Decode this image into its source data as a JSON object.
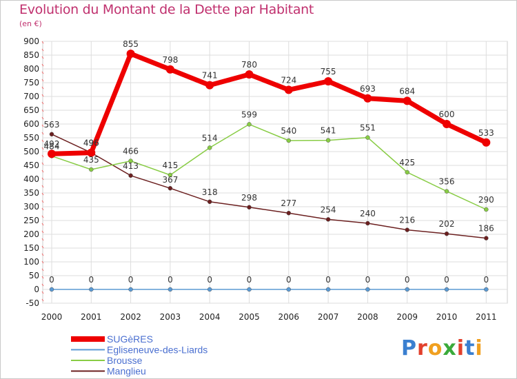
{
  "header": {
    "title": "Evolution du Montant de la Dette par Habitant",
    "subtitle": "(en €)"
  },
  "logo": {
    "text": "Proxiti",
    "letters": [
      {
        "ch": "P",
        "color": "#3a7fd0"
      },
      {
        "ch": "r",
        "color": "#e2402c"
      },
      {
        "ch": "o",
        "color": "#f0a020"
      },
      {
        "ch": "x",
        "color": "#3aaa3a"
      },
      {
        "ch": "i",
        "color": "#e2402c"
      },
      {
        "ch": "t",
        "color": "#3a7fd0"
      },
      {
        "ch": "i",
        "color": "#f0a020"
      }
    ]
  },
  "chart_data": {
    "type": "line",
    "title": "Evolution du Montant de la Dette par Habitant",
    "subtitle": "(en €)",
    "x": [
      "2000",
      "2001",
      "2002",
      "2003",
      "2004",
      "2005",
      "2006",
      "2007",
      "2008",
      "2009",
      "2010",
      "2011"
    ],
    "ylim": [
      -50,
      900
    ],
    "yticks": [
      -50,
      0,
      50,
      100,
      150,
      200,
      250,
      300,
      350,
      400,
      450,
      500,
      550,
      600,
      650,
      700,
      750,
      800,
      850,
      900
    ],
    "grid": true,
    "legend_position": "bottom-left",
    "series": [
      {
        "name": "SUGèRES",
        "color": "#ee0000",
        "values": [
          492,
          496,
          855,
          798,
          741,
          780,
          724,
          755,
          693,
          684,
          600,
          533
        ]
      },
      {
        "name": "Egliseneuve-des-Liards",
        "color": "#5a9ad4",
        "values": [
          0,
          0,
          0,
          0,
          0,
          0,
          0,
          0,
          0,
          0,
          0,
          0
        ]
      },
      {
        "name": "Brousse",
        "color": "#88cc44",
        "values": [
          484,
          435,
          466,
          415,
          514,
          599,
          540,
          541,
          551,
          425,
          356,
          290
        ]
      },
      {
        "name": "Manglieu",
        "color": "#6b1f1f",
        "values": [
          563,
          496,
          413,
          367,
          318,
          298,
          277,
          254,
          240,
          216,
          202,
          186
        ]
      }
    ]
  }
}
